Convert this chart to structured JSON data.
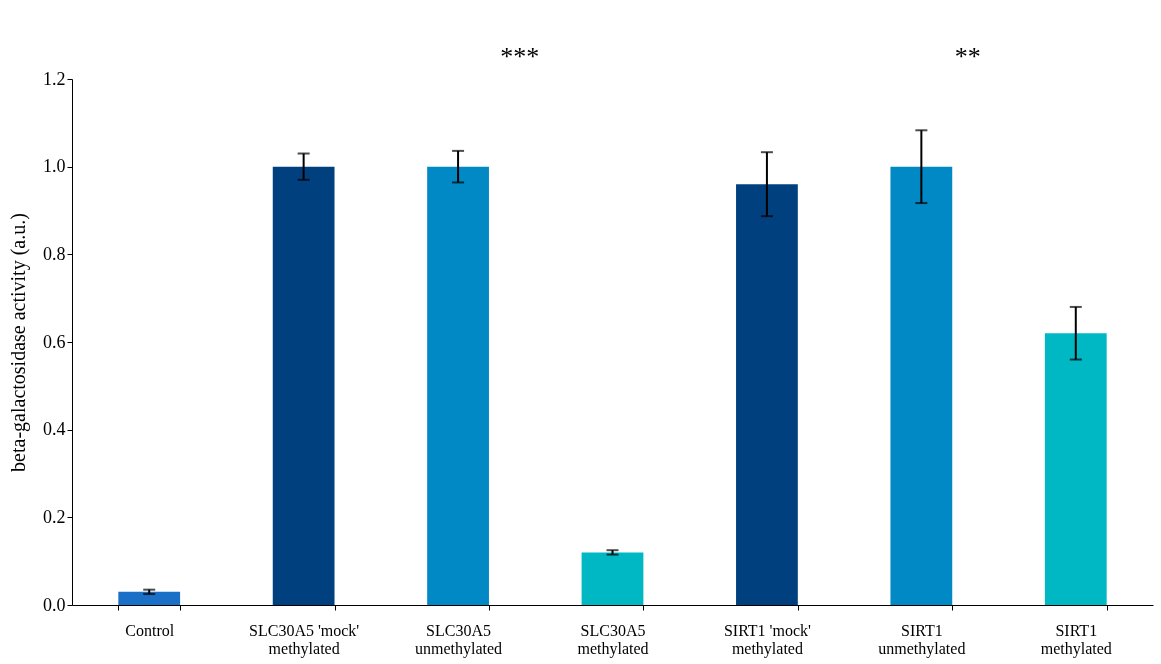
{
  "chart_data": {
    "type": "bar",
    "ylabel": "beta-galactosidase activity (a.u.)",
    "categories": [
      "Control",
      "SLC30A5 'mock'\nmethylated",
      "SLC30A5\nunmethylated",
      "SLC30A5\nmethylated",
      "SIRT1 'mock'\nmethylated",
      "SIRT1\nunmethylated",
      "SIRT1\nmethylated"
    ],
    "values": [
      0.03,
      1.0,
      1.0,
      0.12,
      0.96,
      1.0,
      0.62
    ],
    "errors": [
      0.005,
      0.03,
      0.036,
      0.005,
      0.073,
      0.083,
      0.06
    ],
    "colors": [
      "#1a6fc6",
      "#00407f",
      "#0089c4",
      "#00b8c4",
      "#00407f",
      "#0089c4",
      "#00b8c4"
    ],
    "ylim": [
      0,
      1.2
    ],
    "yticks": [
      {
        "value": 0,
        "label": "0.0"
      },
      {
        "value": 0.2,
        "label": "0.2"
      },
      {
        "value": 0.4,
        "label": "0.4"
      },
      {
        "value": 0.6,
        "label": "0.6"
      },
      {
        "value": 0.8,
        "label": "0.8"
      },
      {
        "value": 1.0,
        "label": "1.0"
      },
      {
        "value": 1.2,
        "label": "1.2"
      }
    ],
    "annotations": [
      "***",
      "**"
    ],
    "grid": false
  }
}
